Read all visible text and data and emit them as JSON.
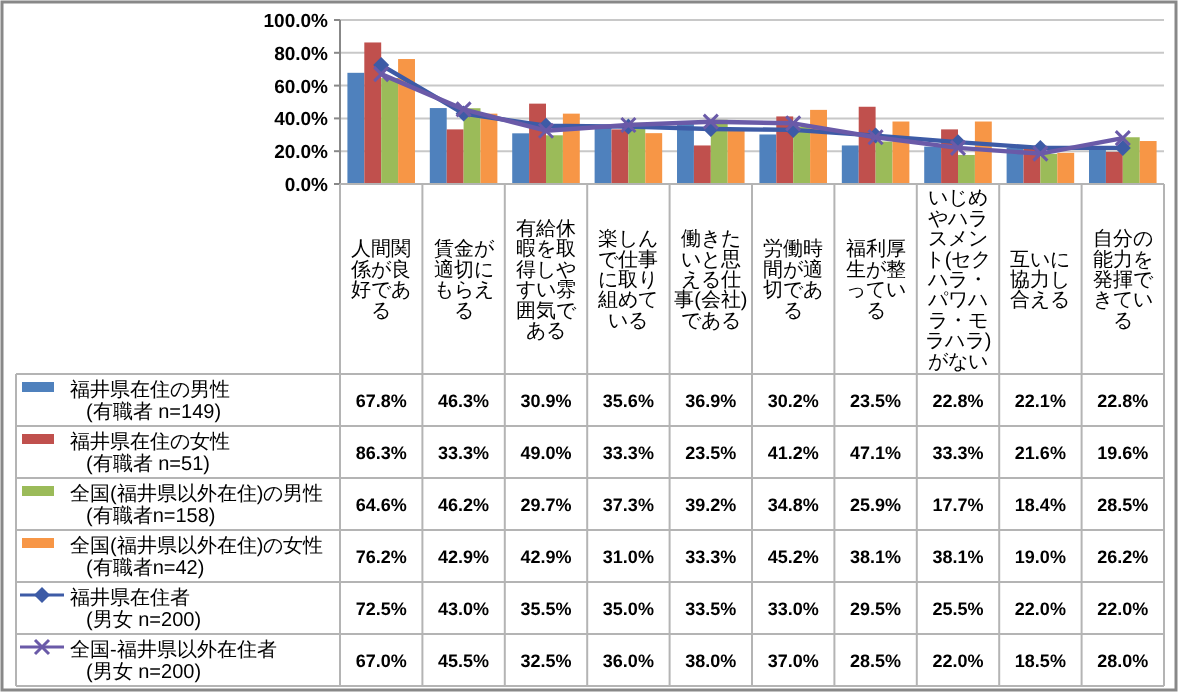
{
  "chart_data": {
    "type": "bar",
    "categories": [
      "人間関係が良好である",
      "賃金が適切にもらえる",
      "有給休暇を取得しやすい雰囲気である",
      "楽しんで仕事に取り組めている",
      "働きたいと思える仕事(会社)である",
      "労働時間が適切である",
      "福利厚生が整っている",
      "いじめやハラスメント(セクハラ・パワハラ・モラハラ)がない",
      "互いに協力し合える",
      "自分の能力を発揮できている"
    ],
    "series": [
      {
        "name": "福井県在住の男性\n(有職者 n=149)",
        "color": "#4f81bd",
        "values": [
          67.8,
          46.3,
          30.9,
          35.6,
          36.9,
          30.2,
          23.5,
          22.8,
          22.1,
          22.8
        ],
        "value_labels": [
          "67.8%",
          "46.3%",
          "30.9%",
          "35.6%",
          "36.9%",
          "30.2%",
          "23.5%",
          "22.8%",
          "22.1%",
          "22.8%"
        ]
      },
      {
        "name": "福井県在住の女性\n(有職者 n=51)",
        "color": "#c0504d",
        "values": [
          86.3,
          33.3,
          49.0,
          33.3,
          23.5,
          41.2,
          47.1,
          33.3,
          21.6,
          19.6
        ],
        "value_labels": [
          "86.3%",
          "33.3%",
          "49.0%",
          "33.3%",
          "23.5%",
          "41.2%",
          "47.1%",
          "33.3%",
          "21.6%",
          "19.6%"
        ]
      },
      {
        "name": "全国(福井県以外在住)の男性\n(有職者n=158)",
        "color": "#9bbb59",
        "values": [
          64.6,
          46.2,
          29.7,
          37.3,
          39.2,
          34.8,
          25.9,
          17.7,
          18.4,
          28.5
        ],
        "value_labels": [
          "64.6%",
          "46.2%",
          "29.7%",
          "37.3%",
          "39.2%",
          "34.8%",
          "25.9%",
          "17.7%",
          "18.4%",
          "28.5%"
        ]
      },
      {
        "name": "全国(福井県以外在住)の女性\n(有職者n=42)",
        "color": "#f79646",
        "values": [
          76.2,
          42.9,
          42.9,
          31.0,
          33.3,
          45.2,
          38.1,
          38.1,
          19.0,
          26.2
        ],
        "value_labels": [
          "76.2%",
          "42.9%",
          "42.9%",
          "31.0%",
          "33.3%",
          "45.2%",
          "38.1%",
          "38.1%",
          "19.0%",
          "26.2%"
        ]
      },
      {
        "name": "福井県在住者\n(男女 n=200)",
        "type": "line",
        "marker": "diamond",
        "color": "#3d5ba6",
        "values": [
          72.5,
          43.0,
          35.5,
          35.0,
          33.5,
          33.0,
          29.5,
          25.5,
          22.0,
          22.0
        ],
        "value_labels": [
          "72.5%",
          "43.0%",
          "35.5%",
          "35.0%",
          "33.5%",
          "33.0%",
          "29.5%",
          "25.5%",
          "22.0%",
          "22.0%"
        ]
      },
      {
        "name": "全国-福井県以外在住者\n(男女 n=200)",
        "type": "line",
        "marker": "cross",
        "color": "#6a5aa8",
        "values": [
          67.0,
          45.5,
          32.5,
          36.0,
          38.0,
          37.0,
          28.5,
          22.0,
          18.5,
          28.0
        ],
        "value_labels": [
          "67.0%",
          "45.5%",
          "32.5%",
          "36.0%",
          "38.0%",
          "37.0%",
          "28.5%",
          "22.0%",
          "18.5%",
          "28.0%"
        ]
      }
    ],
    "ylim": [
      0,
      100
    ],
    "yticks": [
      {
        "value": 0,
        "label": "0.0%"
      },
      {
        "value": 20,
        "label": "20.0%"
      },
      {
        "value": 40,
        "label": "40.0%"
      },
      {
        "value": 60,
        "label": "60.0%"
      },
      {
        "value": 80,
        "label": "80.0%"
      },
      {
        "value": 100,
        "label": "100.0%"
      }
    ],
    "grid": "y",
    "legend": "bottom",
    "line_style": "solid"
  }
}
